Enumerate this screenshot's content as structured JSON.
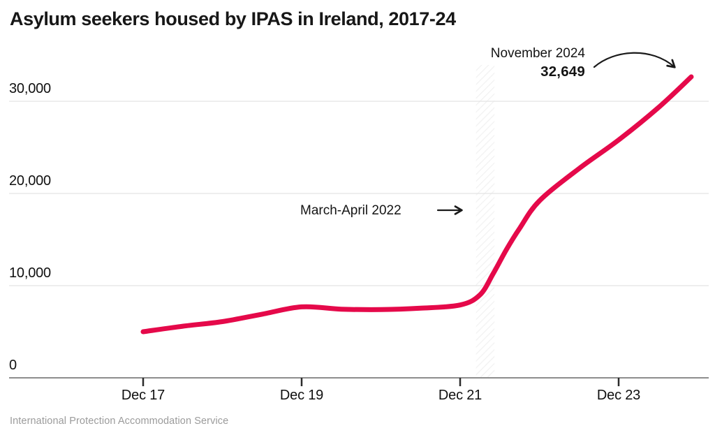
{
  "page": {
    "title": "Asylum seekers housed by IPAS in Ireland, 2017-24",
    "source": "International Protection Accommodation Service"
  },
  "colors": {
    "line": "#e5094a",
    "title_text": "#171717",
    "axis_text": "#101010",
    "gridline": "#e4e4e4",
    "axis_line": "#8e8e8e",
    "tick": "#2b2b2b",
    "band_hatch": "#e7e7e7",
    "annotation": "#1a1a1a",
    "source_text": "#9b9b9b"
  },
  "chart_data": {
    "type": "line",
    "title": "Asylum seekers housed by IPAS in Ireland, 2017-24",
    "xlabel": "",
    "ylabel": "",
    "ylim": [
      0,
      33200
    ],
    "grid": "horizontal",
    "legend": "none",
    "series": [
      {
        "name": "Asylum seekers housed by IPAS",
        "color": "#e5094a",
        "points": [
          {
            "date": "Dec 2017",
            "month": 0,
            "value": 5000
          },
          {
            "date": "Jun 2018",
            "month": 6,
            "value": 5600
          },
          {
            "date": "Dec 2018",
            "month": 12,
            "value": 6100
          },
          {
            "date": "Jun 2019",
            "month": 18,
            "value": 6900
          },
          {
            "date": "Dec 2019",
            "month": 24,
            "value": 7700
          },
          {
            "date": "Jun 2020",
            "month": 30,
            "value": 7450
          },
          {
            "date": "Dec 2020",
            "month": 36,
            "value": 7400
          },
          {
            "date": "Jun 2021",
            "month": 42,
            "value": 7550
          },
          {
            "date": "Dec 2021",
            "month": 48,
            "value": 7900
          },
          {
            "date": "Mar 2022",
            "month": 51,
            "value": 9000
          },
          {
            "date": "May 2022",
            "month": 53,
            "value": 11300
          },
          {
            "date": "Jul 2022",
            "month": 55,
            "value": 13900
          },
          {
            "date": "Sep 2022",
            "month": 57,
            "value": 16200
          },
          {
            "date": "Dec 2022",
            "month": 60,
            "value": 19200
          },
          {
            "date": "Jun 2023",
            "month": 66,
            "value": 22700
          },
          {
            "date": "Dec 2023",
            "month": 72,
            "value": 25800
          },
          {
            "date": "Jun 2024",
            "month": 78,
            "value": 29300
          },
          {
            "date": "Nov 2024",
            "month": 83,
            "value": 32649
          }
        ]
      }
    ],
    "x_ticks": [
      {
        "label": "Dec 17",
        "month": 0
      },
      {
        "label": "Dec 19",
        "month": 24
      },
      {
        "label": "Dec 21",
        "month": 48
      },
      {
        "label": "Dec 23",
        "month": 72
      }
    ],
    "y_ticks": [
      {
        "label": "0",
        "value": 0
      },
      {
        "label": "10,000",
        "value": 10000
      },
      {
        "label": "20,000",
        "value": 20000
      },
      {
        "label": "30,000",
        "value": 30000
      }
    ],
    "band": {
      "label": "March-April 2022",
      "start_month": 50.4,
      "end_month": 53.2
    }
  },
  "annotations": {
    "november": {
      "label": "November 2024",
      "value": "32,649"
    },
    "march": {
      "label": "March-April 2022"
    }
  }
}
